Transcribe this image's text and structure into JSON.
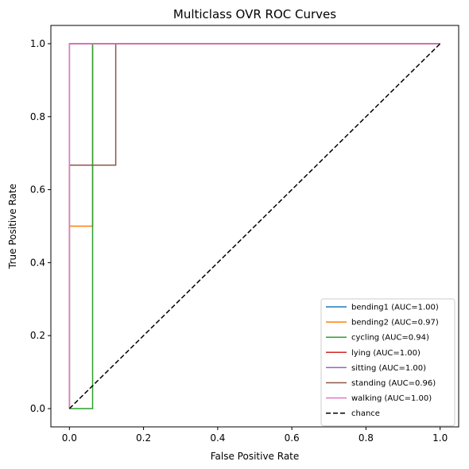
{
  "chart_data": {
    "type": "line",
    "title": "Multiclass OVR ROC Curves",
    "xlabel": "False Positive Rate",
    "ylabel": "True Positive Rate",
    "xlim": [
      -0.05,
      1.05
    ],
    "ylim": [
      -0.05,
      1.05
    ],
    "xticks": [
      0.0,
      0.2,
      0.4,
      0.6,
      0.8,
      1.0
    ],
    "yticks": [
      0.0,
      0.2,
      0.4,
      0.6,
      0.8,
      1.0
    ],
    "xtick_labels": [
      "0.0",
      "0.2",
      "0.4",
      "0.6",
      "0.8",
      "1.0"
    ],
    "ytick_labels": [
      "0.0",
      "0.2",
      "0.4",
      "0.6",
      "0.8",
      "1.0"
    ],
    "grid": false,
    "legend_position": "lower-right",
    "series": [
      {
        "name": "bending1 (AUC=1.00)",
        "color": "#1f77b4",
        "x": [
          0,
          0,
          0,
          1
        ],
        "y": [
          0,
          0,
          1,
          1
        ]
      },
      {
        "name": "bending2 (AUC=0.97)",
        "color": "#ff7f0e",
        "x": [
          0,
          0,
          0.0625,
          0.0625,
          1
        ],
        "y": [
          0,
          0.5,
          0.5,
          1,
          1
        ]
      },
      {
        "name": "cycling (AUC=0.94)",
        "color": "#2ca02c",
        "x": [
          0,
          0,
          0.0625,
          0.0625,
          1
        ],
        "y": [
          0,
          0,
          0,
          1,
          1
        ]
      },
      {
        "name": "lying (AUC=1.00)",
        "color": "#d62728",
        "x": [
          0,
          0,
          0,
          1
        ],
        "y": [
          0,
          0,
          1,
          1
        ]
      },
      {
        "name": "sitting (AUC=1.00)",
        "color": "#9467bd",
        "x": [
          0,
          0,
          0,
          1
        ],
        "y": [
          0,
          0,
          1,
          1
        ]
      },
      {
        "name": "standing (AUC=0.96)",
        "color": "#8c564b",
        "x": [
          0,
          0,
          0.125,
          0.125,
          1
        ],
        "y": [
          0,
          0.667,
          0.667,
          1,
          1
        ]
      },
      {
        "name": "walking (AUC=1.00)",
        "color": "#e377c2",
        "x": [
          0,
          0,
          0,
          1
        ],
        "y": [
          0,
          0,
          1,
          1
        ]
      },
      {
        "name": "chance",
        "color": "#000000",
        "dashed": true,
        "x": [
          0,
          1
        ],
        "y": [
          0,
          1
        ]
      }
    ]
  }
}
